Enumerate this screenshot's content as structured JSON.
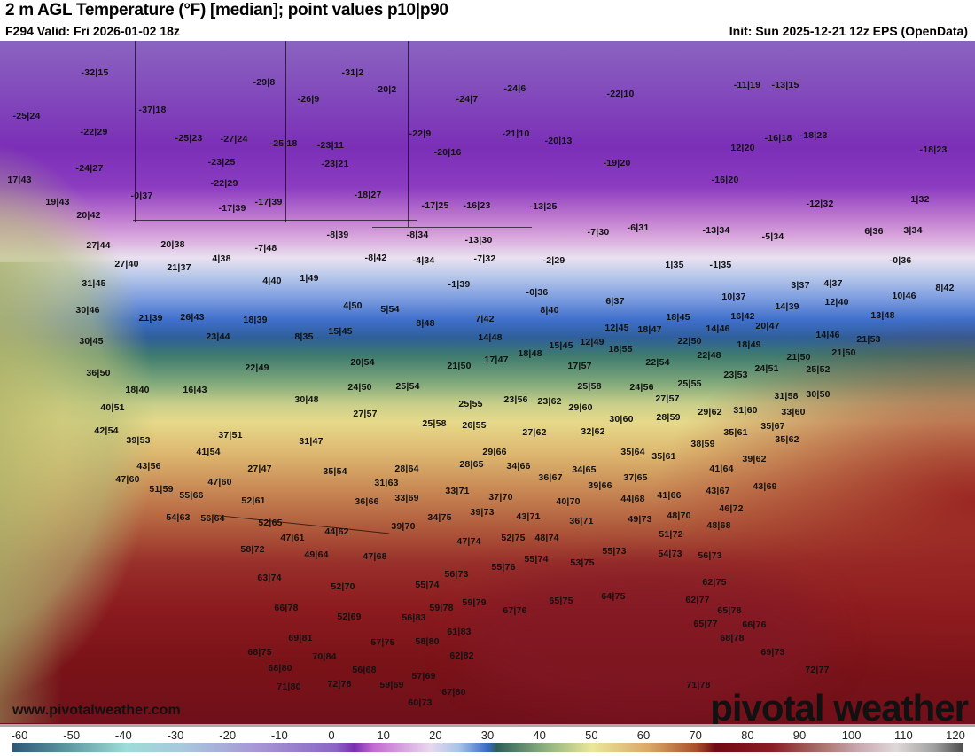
{
  "header": {
    "title": "2 m AGL Temperature (°F) [median]; point values p10|p90",
    "valid": "F294 Valid: Fri 2026-01-02 18z",
    "init": "Init: Sun 2025-12-21 12z EPS (OpenData)"
  },
  "footer": {
    "url": "www.pivotalweather.com",
    "logo": "pivotal weather"
  },
  "colorbar": {
    "ticks": [
      "-60",
      "-50",
      "-40",
      "-30",
      "-20",
      "-10",
      "0",
      "10",
      "20",
      "30",
      "40",
      "50",
      "60",
      "70",
      "80",
      "90",
      "100",
      "110",
      "120"
    ],
    "units": "°F"
  },
  "points": [
    "-32|15",
    "-29|8",
    "-31|2",
    "-20|2",
    "-26|9",
    "-24|7",
    "-24|6",
    "-22|10",
    "-11|19",
    "-13|15",
    "-25|24",
    "-37|18",
    "-22|9",
    "-20|16",
    "-21|10",
    "-20|13",
    "-19|20",
    "-22|29",
    "-25|23",
    "-27|24",
    "-25|18",
    "-23|11",
    "-23|21",
    "-23|25",
    "-24|27",
    "-22|29",
    "-18|27",
    "-17|25",
    "-16|23",
    "-13|25",
    "12|20",
    "-16|18",
    "-18|23",
    "-18|23",
    "-16|20",
    "-12|32",
    "1|32",
    "17|43",
    "19|43",
    "20|42",
    "-0|37",
    "-17|39",
    "-17|39",
    "-8|39",
    "-8|34",
    "-13|30",
    "-7|30",
    "-6|31",
    "-13|34",
    "-5|34",
    "6|36",
    "3|34",
    "-0|36",
    "27|44",
    "20|38",
    "-7|48",
    "4|38",
    "-8|42",
    "-4|34",
    "-7|32",
    "-2|29",
    "-1|35",
    "1|35",
    "27|40",
    "21|37",
    "31|45",
    "4|40",
    "1|49",
    "-1|39",
    "-0|36",
    "3|37",
    "4|37",
    "8|42",
    "10|46",
    "30|46",
    "21|39",
    "26|43",
    "18|39",
    "4|50",
    "5|54",
    "8|48",
    "7|42",
    "8|40",
    "6|37",
    "10|37",
    "14|39",
    "12|40",
    "16|42",
    "13|48",
    "30|45",
    "23|44",
    "8|35",
    "15|45",
    "14|48",
    "12|45",
    "18|47",
    "18|45",
    "14|46",
    "20|47",
    "14|46",
    "21|53",
    "18|55",
    "15|45",
    "12|49",
    "18|48",
    "17|47",
    "22|50",
    "18|49",
    "22|48",
    "21|50",
    "21|50",
    "25|52",
    "36|50",
    "22|49",
    "20|54",
    "21|50",
    "17|57",
    "22|54",
    "23|53",
    "24|51",
    "18|40",
    "16|43",
    "24|50",
    "25|54",
    "25|58",
    "24|56",
    "25|55",
    "31|58",
    "30|50",
    "30|48",
    "25|55",
    "23|56",
    "23|62",
    "29|60",
    "27|57",
    "31|60",
    "33|60",
    "27|57",
    "40|51",
    "42|54",
    "25|58",
    "26|55",
    "30|60",
    "28|59",
    "29|62",
    "35|67",
    "35|61",
    "27|62",
    "32|62",
    "35|62",
    "37|51",
    "31|47",
    "39|53",
    "29|66",
    "38|59",
    "35|64",
    "35|61",
    "39|62",
    "41|54",
    "28|64",
    "28|65",
    "34|66",
    "43|56",
    "27|47",
    "35|54",
    "41|64",
    "34|65",
    "36|67",
    "37|65",
    "47|60",
    "47|60",
    "31|63",
    "39|66",
    "43|69",
    "51|59",
    "55|66",
    "33|71",
    "37|70",
    "43|67",
    "41|66",
    "44|68",
    "33|69",
    "36|66",
    "52|61",
    "40|70",
    "46|72",
    "39|73",
    "54|63",
    "56|64",
    "34|75",
    "43|71",
    "49|73",
    "48|70",
    "36|71",
    "52|65",
    "39|70",
    "48|68",
    "44|62",
    "47|61",
    "51|72",
    "52|75",
    "48|74",
    "47|74",
    "58|72",
    "49|64",
    "47|68",
    "55|73",
    "54|73",
    "56|73",
    "55|74",
    "53|75",
    "55|76",
    "56|73",
    "63|74",
    "62|75",
    "52|70",
    "55|74",
    "59|79",
    "59|78",
    "67|76",
    "65|75",
    "64|75",
    "62|77",
    "65|78",
    "66|78",
    "52|69",
    "56|83",
    "61|83",
    "65|77",
    "66|76",
    "69|81",
    "57|75",
    "58|80",
    "68|78",
    "68|75",
    "70|84",
    "62|82",
    "69|73",
    "68|80",
    "56|68",
    "57|69",
    "72|77",
    "71|80",
    "72|78",
    "59|69",
    "67|80",
    "71|78",
    "60|73"
  ]
}
